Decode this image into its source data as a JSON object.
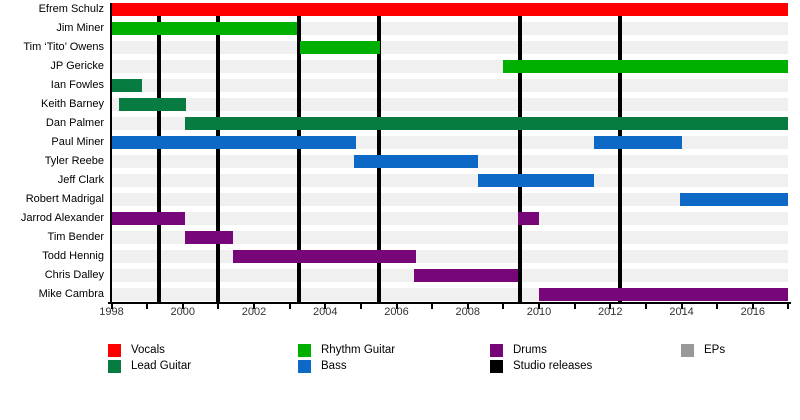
{
  "chart_data": {
    "type": "bar",
    "subtype": "timeline-gantt",
    "title": "",
    "xlabel": "",
    "ylabel": "",
    "x_axis": {
      "min": 1998,
      "max": 2017,
      "tick_interval_years": 1,
      "label_interval_years": 2,
      "tick_labels": [
        "1998",
        "2000",
        "2002",
        "2004",
        "2006",
        "2008",
        "2010",
        "2012",
        "2014",
        "2016"
      ]
    },
    "grid": "row-stripes",
    "legend_position": "bottom",
    "roles": {
      "vocals": {
        "label": "Vocals",
        "color": "#FF0000"
      },
      "lead": {
        "label": "Lead Guitar",
        "color": "#087B40"
      },
      "rhythm": {
        "label": "Rhythm Guitar",
        "color": "#00B000"
      },
      "bass": {
        "label": "Bass",
        "color": "#0E69C6"
      },
      "drums": {
        "label": "Drums",
        "color": "#770679"
      },
      "studio": {
        "label": "Studio releases",
        "color": "#000000"
      },
      "eps": {
        "label": "EPs",
        "color": "#999999"
      }
    },
    "legend_columns": [
      [
        "vocals",
        "lead"
      ],
      [
        "rhythm",
        "bass"
      ],
      [
        "drums",
        "studio"
      ],
      [
        "eps"
      ]
    ],
    "members": [
      {
        "name": "Efrem Schulz",
        "role": "vocals",
        "intervals": [
          [
            1998.0,
            2017.0
          ]
        ]
      },
      {
        "name": "Jim Miner",
        "role": "rhythm",
        "intervals": [
          [
            1998.0,
            2003.2
          ]
        ]
      },
      {
        "name": "Tim ‘Tito’ Owens",
        "role": "rhythm",
        "intervals": [
          [
            2003.3,
            2005.55
          ]
        ]
      },
      {
        "name": "JP Gericke",
        "role": "rhythm",
        "intervals": [
          [
            2009.0,
            2017.0
          ]
        ]
      },
      {
        "name": "Ian Fowles",
        "role": "lead",
        "intervals": [
          [
            1998.0,
            1998.85
          ]
        ]
      },
      {
        "name": "Keith Barney",
        "role": "lead",
        "intervals": [
          [
            1998.2,
            2000.1
          ]
        ]
      },
      {
        "name": "Dan Palmer",
        "role": "lead",
        "intervals": [
          [
            2000.05,
            2017.0
          ]
        ]
      },
      {
        "name": "Paul Miner",
        "role": "bass",
        "intervals": [
          [
            1998.0,
            2004.85
          ],
          [
            2011.55,
            2014.0
          ]
        ]
      },
      {
        "name": "Tyler Reebe",
        "role": "bass",
        "intervals": [
          [
            2004.8,
            2008.3
          ]
        ]
      },
      {
        "name": "Jeff Clark",
        "role": "bass",
        "intervals": [
          [
            2008.3,
            2011.55
          ]
        ]
      },
      {
        "name": "Robert Madrigal",
        "role": "bass",
        "intervals": [
          [
            2013.95,
            2017.0
          ]
        ]
      },
      {
        "name": "Jarrod Alexander",
        "role": "drums",
        "intervals": [
          [
            1998.0,
            2000.05
          ],
          [
            2009.4,
            2010.0
          ]
        ]
      },
      {
        "name": "Tim Bender",
        "role": "drums",
        "intervals": [
          [
            2000.05,
            2001.4
          ]
        ]
      },
      {
        "name": "Todd Hennig",
        "role": "drums",
        "intervals": [
          [
            2001.4,
            2006.55
          ]
        ]
      },
      {
        "name": "Chris Dalley",
        "role": "drums",
        "intervals": [
          [
            2006.5,
            2009.4
          ]
        ]
      },
      {
        "name": "Mike Cambra",
        "role": "drums",
        "intervals": [
          [
            2010.0,
            2017.0
          ]
        ]
      }
    ],
    "studio_release_years": [
      1999.33,
      2001.0,
      2003.26,
      2005.5,
      2009.47,
      2012.27
    ]
  },
  "colors": {
    "background": "#FFFFFF",
    "row_stripe": "#F0F0F0",
    "axis": "#000000",
    "tick_label": "#333333"
  }
}
